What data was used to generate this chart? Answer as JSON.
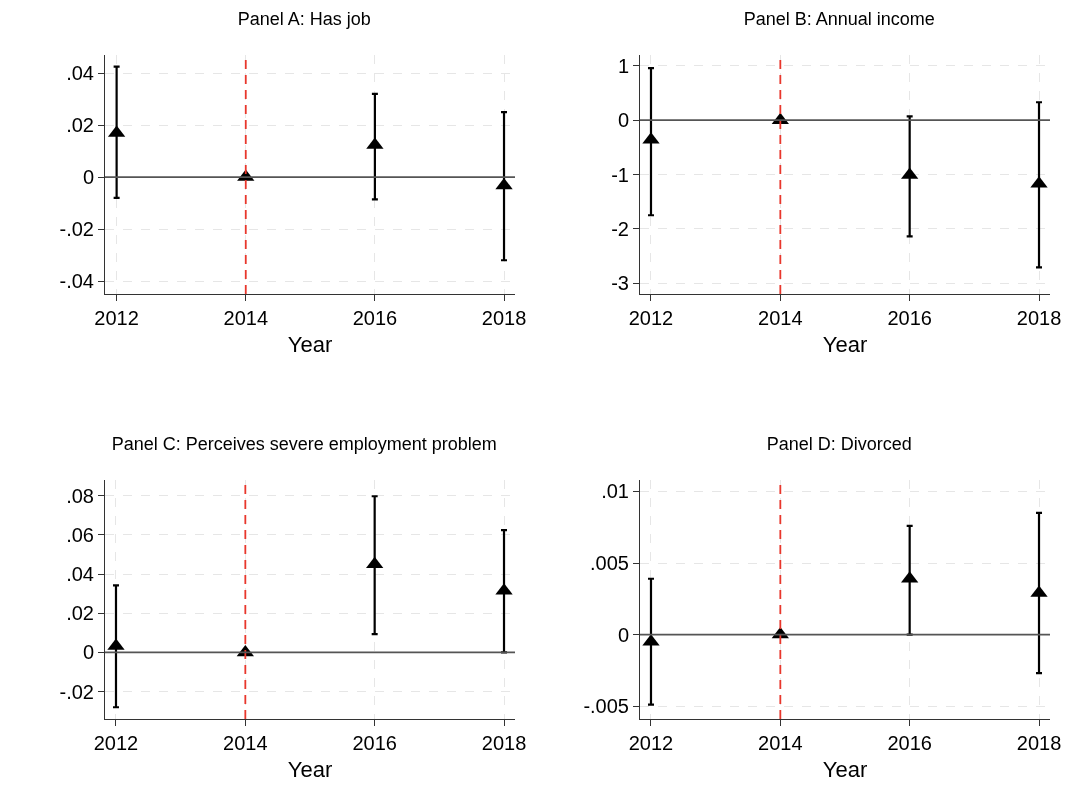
{
  "chart_data": [
    {
      "type": "scatter",
      "title": "Panel A: Has job",
      "xlabel": "Year",
      "x": [
        2012,
        2014,
        2016,
        2018
      ],
      "series": [
        {
          "color": "#000000",
          "values": [
            0.017,
            0,
            0.0124,
            -0.0032
          ],
          "errors": [
            [
              -0.008,
              0.0425
            ],
            null,
            [
              -0.0086,
              0.032
            ],
            [
              -0.032,
              0.025
            ]
          ]
        }
      ],
      "xlim": [
        2011.82,
        2018.17
      ],
      "xticks": [
        2012,
        2014,
        2016,
        2018
      ],
      "ylim": [
        -0.045,
        0.047
      ],
      "yticks": [
        {
          "value": -0.04,
          "label": "-.04"
        },
        {
          "value": -0.02,
          "label": "-.02"
        },
        0,
        {
          "value": 0.02,
          "label": ".02"
        },
        {
          "value": 0.04,
          "label": ".04"
        }
      ],
      "ref_lines": [
        {
          "axis": "x",
          "value": 2014,
          "color": "#e8372c",
          "line_style": "dashed"
        },
        {
          "axis": "y",
          "value": 0,
          "color": "#555555",
          "line_style": "solid"
        }
      ],
      "grid": true,
      "marker": "triangle"
    },
    {
      "type": "scatter",
      "title": "Panel B: Annual income",
      "xlabel": "Year",
      "x": [
        2012,
        2014,
        2016,
        2018
      ],
      "series": [
        {
          "color": "#000000",
          "values": [
            -0.36,
            0,
            -1.01,
            -1.17
          ],
          "errors": [
            [
              -1.75,
              0.96
            ],
            null,
            [
              -2.14,
              0.07
            ],
            [
              -2.71,
              0.33
            ]
          ]
        }
      ],
      "xlim": [
        2011.83,
        2018.17
      ],
      "xticks": [
        2012,
        2014,
        2016,
        2018
      ],
      "ylim": [
        -3.2,
        1.2
      ],
      "yticks": [
        -3,
        -2,
        -1,
        0,
        1
      ],
      "ref_lines": [
        {
          "axis": "x",
          "value": 2014,
          "color": "#e8372c",
          "line_style": "dashed"
        },
        {
          "axis": "y",
          "value": 0,
          "color": "#555555",
          "line_style": "solid"
        }
      ],
      "grid": true,
      "marker": "triangle"
    },
    {
      "type": "scatter",
      "title": "Panel C: Perceives severe employment problem",
      "xlabel": "Year",
      "x": [
        2012,
        2014,
        2016,
        2018
      ],
      "series": [
        {
          "color": "#000000",
          "values": [
            0.0033,
            0,
            0.045,
            0.0315
          ],
          "errors": [
            [
              -0.028,
              0.0342
            ],
            null,
            [
              0.0093,
              0.0797
            ],
            [
              0,
              0.0624
            ]
          ]
        }
      ],
      "xlim": [
        2011.83,
        2018.17
      ],
      "xticks": [
        2012,
        2014,
        2016,
        2018
      ],
      "ylim": [
        -0.034,
        0.088
      ],
      "yticks": [
        {
          "value": -0.02,
          "label": "-.02"
        },
        0,
        {
          "value": 0.02,
          "label": ".02"
        },
        {
          "value": 0.04,
          "label": ".04"
        },
        {
          "value": 0.06,
          "label": ".06"
        },
        {
          "value": 0.08,
          "label": ".08"
        }
      ],
      "ref_lines": [
        {
          "axis": "x",
          "value": 2014,
          "color": "#e8372c",
          "line_style": "dashed"
        },
        {
          "axis": "y",
          "value": 0,
          "color": "#555555",
          "line_style": "solid"
        }
      ],
      "grid": true,
      "marker": "triangle"
    },
    {
      "type": "scatter",
      "title": "Panel D: Divorced",
      "xlabel": "Year",
      "x": [
        2012,
        2014,
        2016,
        2018
      ],
      "series": [
        {
          "color": "#000000",
          "values": [
            -0.0005,
            0,
            0.0039,
            0.0029
          ],
          "errors": [
            [
              -0.0049,
              0.0039
            ],
            null,
            [
              0,
              0.0076
            ],
            [
              -0.0027,
              0.0085
            ]
          ]
        }
      ],
      "xlim": [
        2011.83,
        2018.17
      ],
      "xticks": [
        2012,
        2014,
        2016,
        2018
      ],
      "ylim": [
        -0.0059,
        0.0108
      ],
      "yticks": [
        {
          "value": -0.005,
          "label": "-.005"
        },
        0,
        {
          "value": 0.005,
          "label": ".005"
        },
        {
          "value": 0.01,
          "label": ".01"
        }
      ],
      "ref_lines": [
        {
          "axis": "x",
          "value": 2014,
          "color": "#e8372c",
          "line_style": "dashed"
        },
        {
          "axis": "y",
          "value": 0,
          "color": "#555555",
          "line_style": "solid"
        }
      ],
      "grid": true,
      "marker": "triangle"
    }
  ]
}
